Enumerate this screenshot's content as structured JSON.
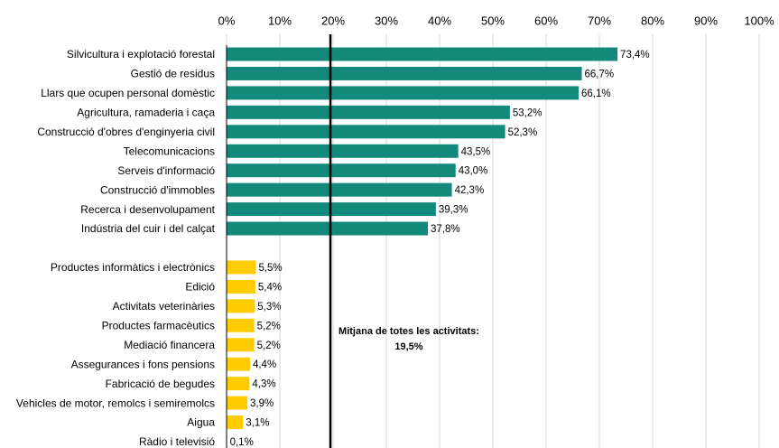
{
  "chart_data": {
    "type": "hbar",
    "categories": [
      "Silvicultura i explotació forestal",
      "Gestió de residus",
      "Llars que ocupen personal domèstic",
      "Agricultura, ramaderia i caça",
      "Construcció d'obres d'enginyeria civil",
      "Telecomunicacions",
      "Serveis d'informació",
      "Construcció d'immobles",
      "Recerca i desenvolupament",
      "Indústria del cuir i del calçat",
      null,
      "Productes informàtics i electrònics",
      "Edició",
      "Activitats veterinàries",
      "Productes farmacèutics",
      "Mediació financera",
      "Assegurances i  fons pensions",
      "Fabricació de begudes",
      "Vehicles de motor, remolcs i semiremolcs",
      "Aigua",
      "Ràdio i televisió"
    ],
    "values": [
      73.4,
      66.7,
      66.1,
      53.2,
      52.3,
      43.5,
      43.0,
      42.3,
      39.3,
      37.8,
      null,
      5.5,
      5.4,
      5.3,
      5.2,
      5.2,
      4.4,
      4.3,
      3.9,
      3.1,
      0.1
    ],
    "value_labels": [
      "73,4%",
      "66,7%",
      "66,1%",
      "53,2%",
      "52,3%",
      "43,5%",
      "43,0%",
      "42,3%",
      "39,3%",
      "37,8%",
      null,
      "5,5%",
      "5,4%",
      "5,3%",
      "5,2%",
      "5,2%",
      "4,4%",
      "4,3%",
      "3,9%",
      "3,1%",
      "0,1%"
    ],
    "colors": [
      "#12897a",
      "#12897a",
      "#12897a",
      "#12897a",
      "#12897a",
      "#12897a",
      "#12897a",
      "#12897a",
      "#12897a",
      "#12897a",
      null,
      "#ffcc00",
      "#ffcc00",
      "#ffcc00",
      "#ffcc00",
      "#ffcc00",
      "#ffcc00",
      "#ffcc00",
      "#ffcc00",
      "#ffcc00",
      "#ffcc00"
    ],
    "xlim": [
      0,
      100
    ],
    "xticks": [
      {
        "value": 0,
        "label": "0%"
      },
      {
        "value": 10,
        "label": "10%"
      },
      {
        "value": 20,
        "label": "20%"
      },
      {
        "value": 30,
        "label": "30%"
      },
      {
        "value": 40,
        "label": "40%"
      },
      {
        "value": 50,
        "label": "50%"
      },
      {
        "value": 60,
        "label": "60%"
      },
      {
        "value": 70,
        "label": "70%"
      },
      {
        "value": 80,
        "label": "80%"
      },
      {
        "value": 90,
        "label": "90%"
      },
      {
        "value": 100,
        "label": "100%"
      }
    ],
    "grid": true,
    "reference_line": {
      "value": 19.5,
      "label": "Mitjana de totes les activitats:",
      "value_label": "19,5%"
    }
  }
}
